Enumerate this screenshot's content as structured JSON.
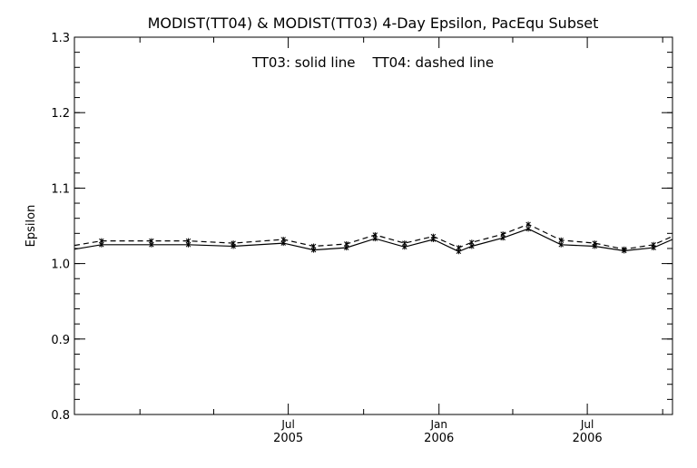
{
  "chart_data": {
    "type": "line",
    "title": "MODIST(TT04) & MODIST(TT03) 4-Day Epsilon, PacEqu Subset",
    "annotation": "TT03: solid line    TT04: dashed line",
    "xlabel": "",
    "ylabel": "Epsilon",
    "xlim": [
      "2004-10-13",
      "2006-10-13"
    ],
    "ylim": [
      0.8,
      1.3
    ],
    "yticks": [
      "0.8",
      "0.9",
      "1.0",
      "1.1",
      "1.2",
      "1.3"
    ],
    "xticks": [
      {
        "date": "2005-07-01",
        "month": "Jul",
        "year": "2005"
      },
      {
        "date": "2006-01-01",
        "month": "Jan",
        "year": "2006"
      },
      {
        "date": "2006-07-01",
        "month": "Jul",
        "year": "2006"
      }
    ],
    "grid": false,
    "series": [
      {
        "name": "TT03",
        "style": "solid",
        "color": "#000000",
        "x": [
          "2004-10-13",
          "2004-11-15",
          "2005-01-15",
          "2005-03-01",
          "2005-04-25",
          "2005-06-25",
          "2005-08-01",
          "2005-09-10",
          "2005-10-15",
          "2005-11-20",
          "2005-12-25",
          "2006-01-25",
          "2006-02-10",
          "2006-03-20",
          "2006-04-20",
          "2006-05-30",
          "2006-07-10",
          "2006-08-15",
          "2006-09-20",
          "2006-10-13"
        ],
        "values": [
          1.019,
          1.025,
          1.025,
          1.025,
          1.023,
          1.027,
          1.018,
          1.021,
          1.033,
          1.022,
          1.032,
          1.016,
          1.023,
          1.034,
          1.046,
          1.025,
          1.023,
          1.017,
          1.021,
          1.032
        ]
      },
      {
        "name": "TT04",
        "style": "dashed",
        "color": "#000000",
        "x": [
          "2004-10-13",
          "2004-11-15",
          "2005-01-15",
          "2005-03-01",
          "2005-04-25",
          "2005-06-25",
          "2005-08-01",
          "2005-09-10",
          "2005-10-15",
          "2005-11-20",
          "2005-12-25",
          "2006-01-25",
          "2006-02-10",
          "2006-03-20",
          "2006-04-20",
          "2006-05-30",
          "2006-07-10",
          "2006-08-15",
          "2006-09-20",
          "2006-10-13"
        ],
        "values": [
          1.024,
          1.03,
          1.03,
          1.03,
          1.027,
          1.032,
          1.023,
          1.026,
          1.038,
          1.027,
          1.036,
          1.021,
          1.028,
          1.039,
          1.052,
          1.031,
          1.027,
          1.019,
          1.025,
          1.036
        ]
      }
    ]
  }
}
